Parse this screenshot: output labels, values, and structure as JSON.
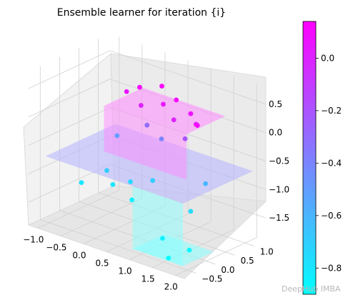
{
  "chart_data": {
    "type": "scatter",
    "title": "Ensemble learner for iteration {i}",
    "xlabel": "",
    "ylabel": "",
    "zlabel": "",
    "x_ticks": [
      "−1.0",
      "−0.5",
      "0.0",
      "0.5",
      "1.0",
      "1.5",
      "2.0"
    ],
    "y_ticks": [
      "−0.5",
      "0.0",
      "0.5",
      "1.0"
    ],
    "z_ticks": [
      "−1.5",
      "−1.0",
      "−0.5",
      "0.0",
      "0.5"
    ],
    "xlim": [
      -1.2,
      2.2
    ],
    "ylim": [
      -0.8,
      1.3
    ],
    "zlim": [
      -1.9,
      0.8
    ],
    "colormap": "cool",
    "colorbar_ticks": [
      "0.0",
      "−0.2",
      "−0.4",
      "−0.6",
      "−0.8"
    ],
    "colorbar_range": [
      -0.9,
      0.14
    ],
    "surfaces": [
      {
        "name": "",
        "x": [
          -1.0,
          2.0
        ],
        "y": [
          -0.6,
          1.2
        ],
        "z": -0.7,
        "color": "#b3b3ff"
      },
      {
        "name": "",
        "x": [
          -0.4,
          1.4
        ],
        "y": [
          0.2,
          1.2
        ],
        "z": 0.1,
        "color": "#ff88ff"
      },
      {
        "name": "",
        "x": [
          0.9,
          2.0
        ],
        "y": [
          -0.6,
          0.2
        ],
        "z": -1.8,
        "color": "#88ffff"
      }
    ],
    "points": [
      {
        "x": -0.5,
        "y": 0.9,
        "z": 0.1,
        "v": 0.05
      },
      {
        "x": -0.3,
        "y": 1.0,
        "z": 0.2,
        "v": 0.1
      },
      {
        "x": -0.1,
        "y": 0.8,
        "z": 0.0,
        "v": 0.0
      },
      {
        "x": 0.1,
        "y": 1.1,
        "z": 0.3,
        "v": 0.12
      },
      {
        "x": 0.3,
        "y": 0.9,
        "z": 0.1,
        "v": 0.05
      },
      {
        "x": 0.5,
        "y": 1.0,
        "z": 0.2,
        "v": 0.1
      },
      {
        "x": 0.7,
        "y": 0.7,
        "z": 0.0,
        "v": 0.0
      },
      {
        "x": 0.9,
        "y": 0.9,
        "z": 0.1,
        "v": 0.08
      },
      {
        "x": 1.1,
        "y": 0.8,
        "z": 0.0,
        "v": 0.05
      },
      {
        "x": 1.3,
        "y": 0.6,
        "z": 0.1,
        "v": 0.1
      },
      {
        "x": 0.2,
        "y": 0.6,
        "z": -0.2,
        "v": -0.3
      },
      {
        "x": 0.6,
        "y": 0.5,
        "z": -0.3,
        "v": -0.4
      },
      {
        "x": -0.2,
        "y": 0.3,
        "z": -0.4,
        "v": -0.5
      },
      {
        "x": 1.2,
        "y": 0.4,
        "z": -0.1,
        "v": -0.2
      },
      {
        "x": 0.0,
        "y": -0.2,
        "z": -0.8,
        "v": -0.7
      },
      {
        "x": 0.3,
        "y": -0.4,
        "z": -0.9,
        "v": -0.8
      },
      {
        "x": 0.6,
        "y": -0.3,
        "z": -0.8,
        "v": -0.75
      },
      {
        "x": 0.8,
        "y": -0.5,
        "z": -1.0,
        "v": -0.85
      },
      {
        "x": 1.0,
        "y": -0.2,
        "z": -0.7,
        "v": -0.7
      },
      {
        "x": -0.3,
        "y": -0.5,
        "z": -1.0,
        "v": -0.8
      },
      {
        "x": 1.3,
        "y": -0.3,
        "z": -1.6,
        "v": -0.85
      },
      {
        "x": 1.6,
        "y": -0.5,
        "z": -1.8,
        "v": -0.9
      },
      {
        "x": 1.8,
        "y": -0.2,
        "z": -1.7,
        "v": -0.88
      },
      {
        "x": 1.9,
        "y": 0.1,
        "z": -0.6,
        "v": -0.6
      },
      {
        "x": 2.0,
        "y": -0.4,
        "z": -0.9,
        "v": -0.75
      }
    ]
  },
  "watermark": "DeepHub IMBA"
}
